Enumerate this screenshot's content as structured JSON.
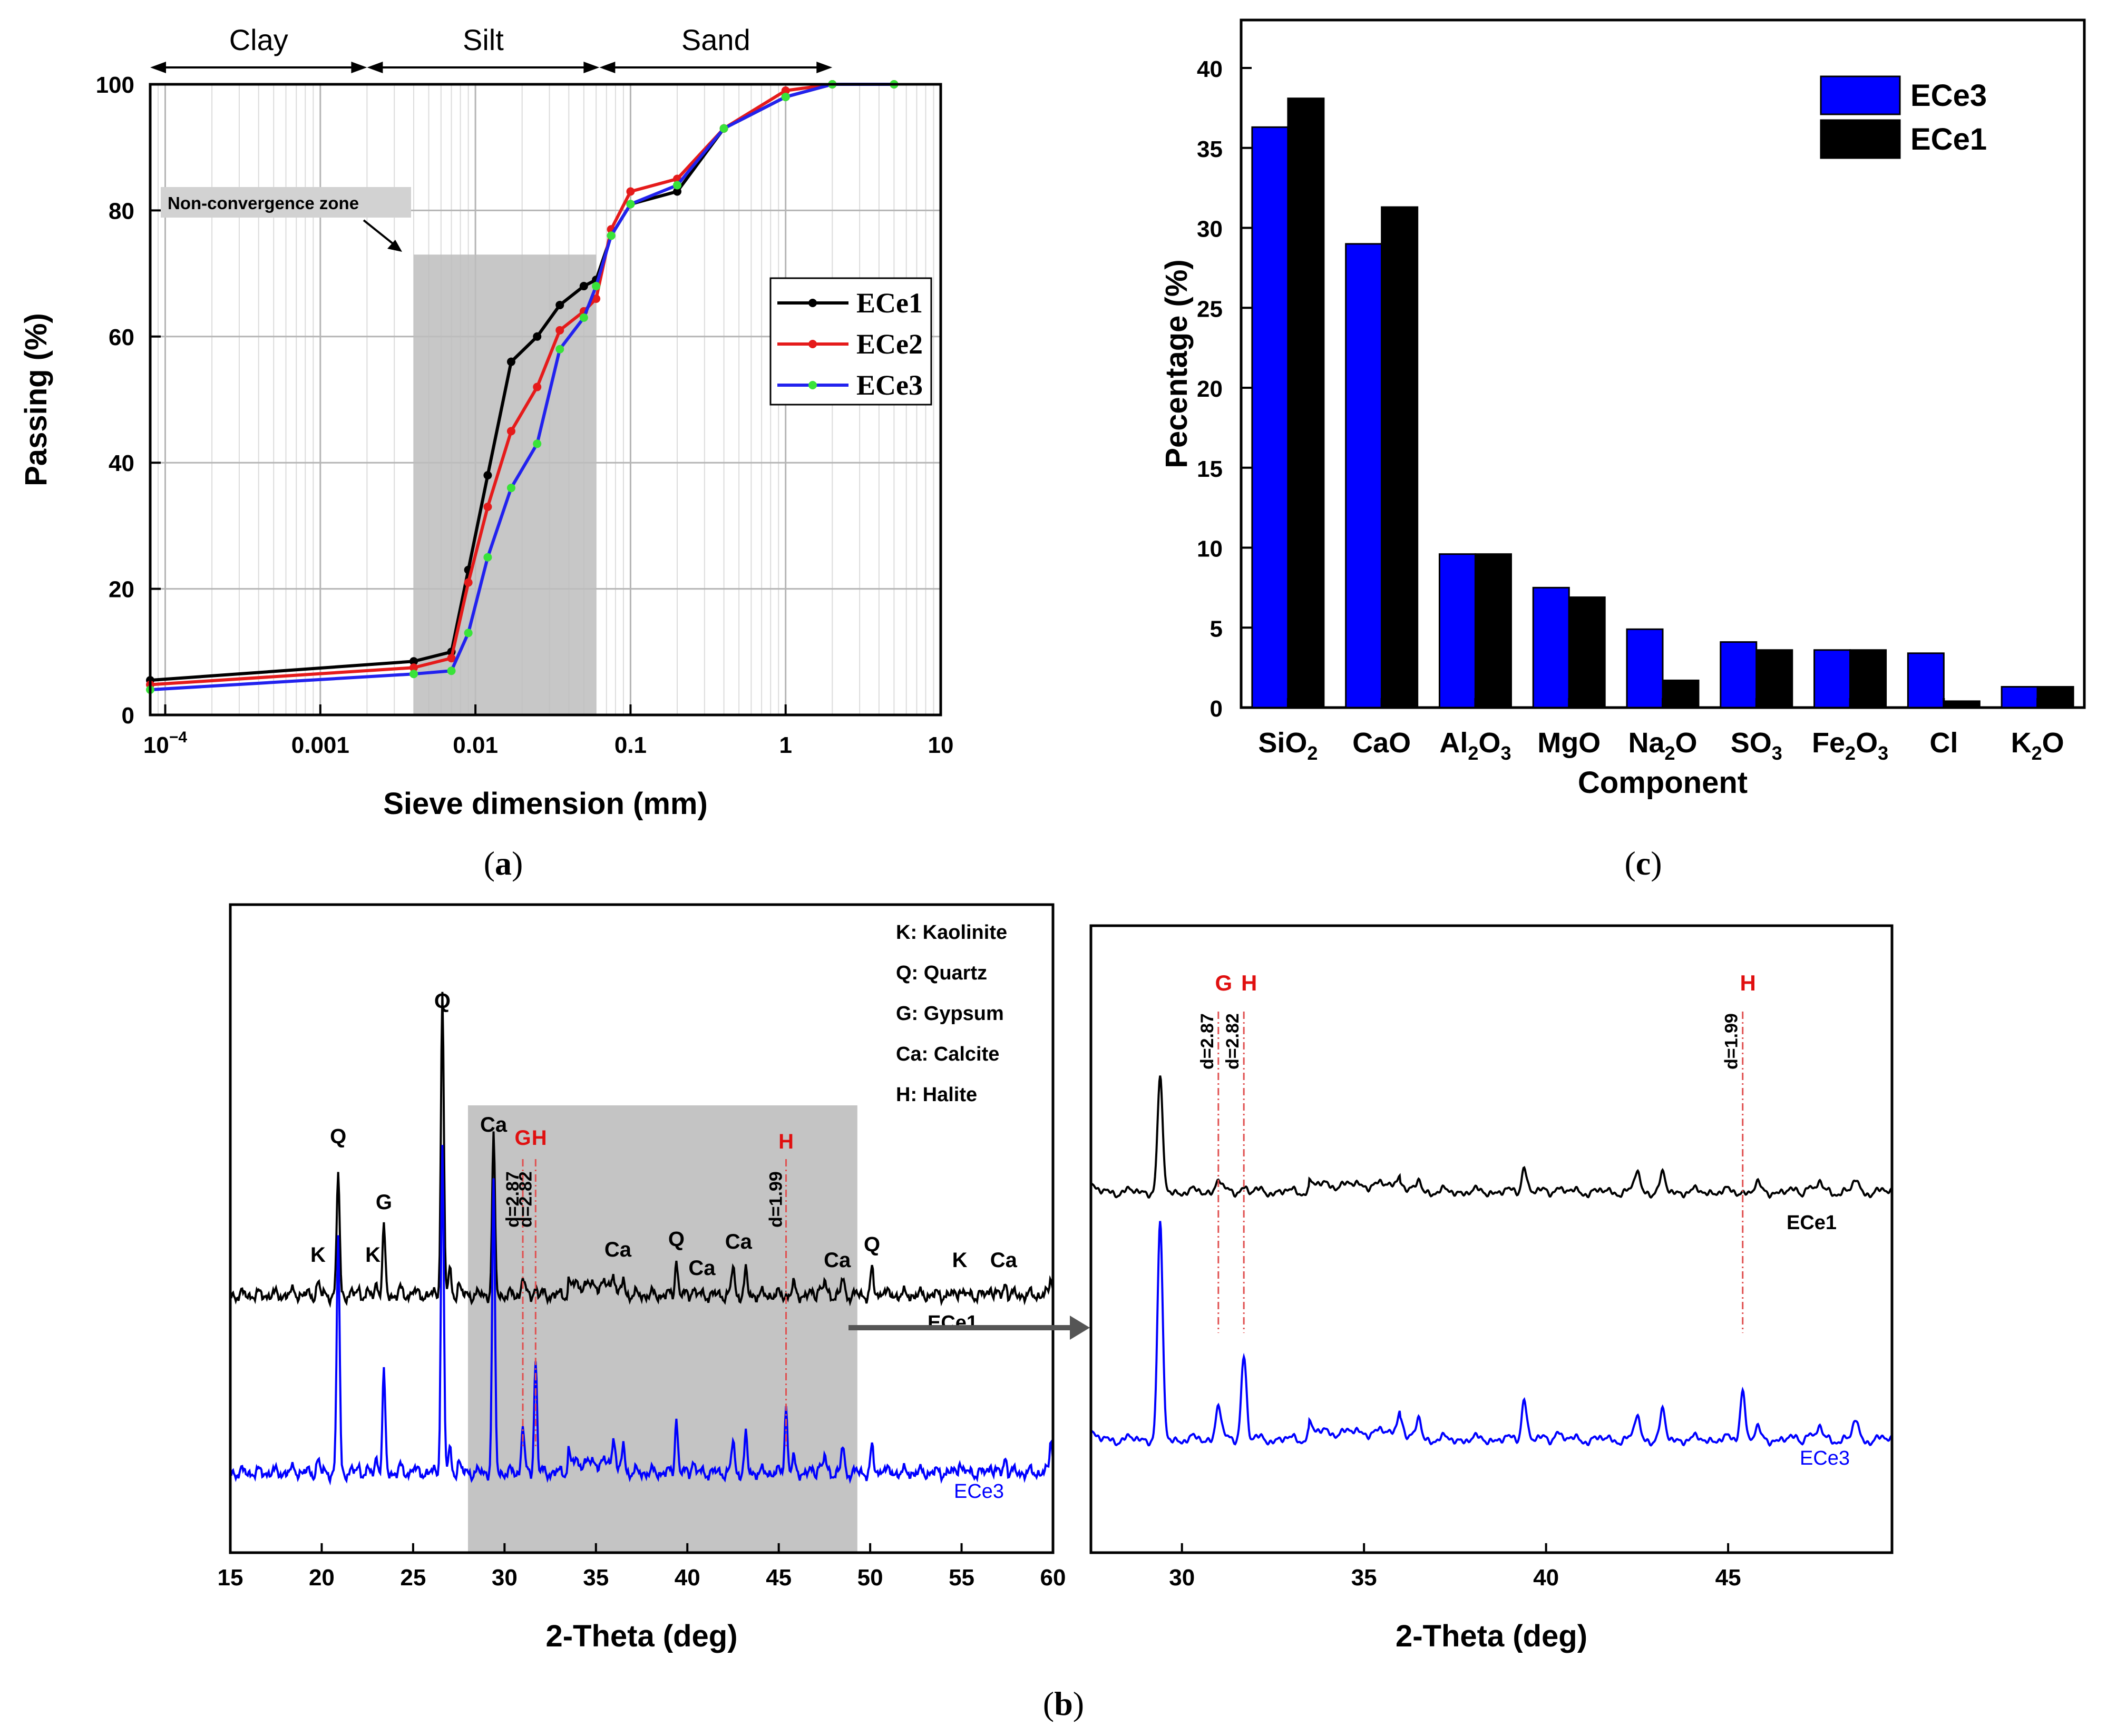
{
  "panel_labels": {
    "a": "a",
    "b": "b",
    "c": "c"
  },
  "chart_data": [
    {
      "id": "a",
      "type": "line",
      "xscale": "log",
      "xlim": [
        8e-05,
        10
      ],
      "ylim": [
        0,
        100
      ],
      "xlabel": "Sieve dimension (mm)",
      "ylabel": "Passing (%)",
      "xticks": [
        {
          "value": 0.0001,
          "label": "10",
          "sup": "−4"
        },
        {
          "value": 0.001,
          "label": "0.001"
        },
        {
          "value": 0.01,
          "label": "0.01"
        },
        {
          "value": 0.1,
          "label": "0.1"
        },
        {
          "value": 1,
          "label": "1"
        },
        {
          "value": 10,
          "label": "10"
        }
      ],
      "yticks": [
        0,
        20,
        40,
        60,
        80,
        100
      ],
      "zones": [
        {
          "label": "Clay",
          "from": 8e-05,
          "to": 0.002
        },
        {
          "label": "Silt",
          "from": 0.002,
          "to": 0.063
        },
        {
          "label": "Sand",
          "from": 0.063,
          "to": 2
        }
      ],
      "shaded_region": {
        "x": [
          0.004,
          0.06
        ],
        "ymax": 73
      },
      "annotation": {
        "text": "Non-convergence zone"
      },
      "series": [
        {
          "name": "ECe1",
          "color": "#000000",
          "x": [
            8e-05,
            0.004,
            0.007,
            0.009,
            0.012,
            0.017,
            0.025,
            0.035,
            0.05,
            0.06,
            0.075,
            0.1,
            0.2,
            0.4,
            1,
            2,
            5
          ],
          "y": [
            5.5,
            8.5,
            10,
            23,
            38,
            56,
            60,
            65,
            68,
            69,
            76,
            81,
            83,
            93,
            98,
            100,
            100
          ]
        },
        {
          "name": "ECe2",
          "color": "#e51b1b",
          "x": [
            8e-05,
            0.004,
            0.007,
            0.009,
            0.012,
            0.017,
            0.025,
            0.035,
            0.05,
            0.06,
            0.075,
            0.1,
            0.2,
            0.4,
            1,
            2,
            5
          ],
          "y": [
            4.8,
            7.5,
            9,
            21,
            33,
            45,
            52,
            61,
            64,
            66,
            77,
            83,
            85,
            93,
            99,
            100,
            100
          ]
        },
        {
          "name": "ECe3",
          "color": "#2222ee",
          "x": [
            8e-05,
            0.004,
            0.007,
            0.009,
            0.012,
            0.017,
            0.025,
            0.035,
            0.05,
            0.06,
            0.075,
            0.1,
            0.2,
            0.4,
            1,
            2,
            5
          ],
          "y": [
            4,
            6.5,
            7,
            13,
            25,
            36,
            43,
            58,
            63,
            68,
            76,
            81,
            84,
            93,
            98,
            100,
            100
          ]
        }
      ],
      "legend": "right"
    },
    {
      "id": "c",
      "type": "bar",
      "categories": [
        {
          "base": "SiO",
          "sub": "2",
          "tail": ""
        },
        {
          "base": "CaO",
          "sub": "",
          "tail": ""
        },
        {
          "base": "Al",
          "sub": "2",
          "tail": "O",
          "sub2": "3"
        },
        {
          "base": "MgO",
          "sub": "",
          "tail": ""
        },
        {
          "base": "Na",
          "sub": "2",
          "tail": "O"
        },
        {
          "base": "SO",
          "sub": "3",
          "tail": ""
        },
        {
          "base": "Fe",
          "sub": "2",
          "tail": "O",
          "sub2": "3"
        },
        {
          "base": "Cl",
          "sub": "",
          "tail": ""
        },
        {
          "base": "K",
          "sub": "2",
          "tail": "O"
        }
      ],
      "series": [
        {
          "name": "ECe3",
          "color": "#0000ff",
          "values": [
            36.3,
            29.0,
            9.6,
            7.5,
            4.9,
            4.1,
            3.6,
            3.4,
            1.3
          ]
        },
        {
          "name": "ECe1",
          "color": "#000000",
          "values": [
            38.1,
            31.3,
            9.6,
            6.9,
            1.7,
            3.6,
            3.6,
            0.4,
            1.3
          ]
        }
      ],
      "ylim": [
        0,
        43
      ],
      "yticks": [
        0,
        5,
        10,
        15,
        20,
        25,
        30,
        35,
        40
      ],
      "xlabel": "Component",
      "ylabel": "Pecentage (%)",
      "legend": "top-right"
    },
    {
      "id": "b-left",
      "type": "line",
      "xlim": [
        15,
        60
      ],
      "xticks": [
        15,
        20,
        25,
        30,
        35,
        40,
        45,
        50,
        55,
        60
      ],
      "xlabel": "2-Theta (deg)",
      "shaded_region": {
        "x": [
          28,
          49.3
        ]
      },
      "legend_items": [
        "K: Kaolinite",
        "Q: Quartz",
        "G: Gypsum",
        "Ca: Calcite",
        "H: Halite"
      ],
      "series": [
        {
          "name": "ECe1",
          "color": "#000000",
          "label": "ECe1",
          "peaks": [
            [
              18.5,
              3
            ],
            [
              19.8,
              8
            ],
            [
              20.9,
              75
            ],
            [
              22.0,
              4
            ],
            [
              23.0,
              8
            ],
            [
              23.4,
              40
            ],
            [
              24.3,
              3
            ],
            [
              25.0,
              3
            ],
            [
              26.6,
              185
            ],
            [
              27.0,
              15
            ],
            [
              27.5,
              7
            ],
            [
              29.4,
              95
            ],
            [
              31.0,
              12
            ],
            [
              31.7,
              5
            ],
            [
              33.5,
              3
            ],
            [
              36.0,
              12
            ],
            [
              36.5,
              10
            ],
            [
              39.4,
              22
            ],
            [
              40.3,
              5
            ],
            [
              42.5,
              18
            ],
            [
              43.2,
              14
            ],
            [
              45.8,
              6
            ],
            [
              47.2,
              6
            ],
            [
              47.5,
              8
            ],
            [
              48.5,
              10
            ],
            [
              50.1,
              15
            ],
            [
              50.7,
              4
            ],
            [
              54.9,
              5
            ],
            [
              56.6,
              6
            ],
            [
              57.4,
              8
            ],
            [
              59.9,
              12
            ]
          ]
        },
        {
          "name": "ECe3",
          "color": "#0000ff",
          "label": "ECe3",
          "peaks": [
            [
              18.5,
              3
            ],
            [
              19.8,
              8
            ],
            [
              20.9,
              145
            ],
            [
              22.0,
              4
            ],
            [
              23.0,
              10
            ],
            [
              23.4,
              60
            ],
            [
              24.3,
              3
            ],
            [
              25.0,
              3
            ],
            [
              26.6,
              200
            ],
            [
              27.0,
              14
            ],
            [
              27.5,
              7
            ],
            [
              29.4,
              175
            ],
            [
              31.0,
              30
            ],
            [
              31.7,
              70
            ],
            [
              33.5,
              8
            ],
            [
              36.0,
              22
            ],
            [
              36.5,
              18
            ],
            [
              39.4,
              34
            ],
            [
              40.3,
              8
            ],
            [
              42.5,
              20
            ],
            [
              43.2,
              22
            ],
            [
              45.4,
              40
            ],
            [
              45.8,
              8
            ],
            [
              47.2,
              6
            ],
            [
              47.5,
              10
            ],
            [
              48.5,
              16
            ],
            [
              50.1,
              15
            ],
            [
              50.7,
              4
            ],
            [
              54.9,
              8
            ],
            [
              56.6,
              6
            ],
            [
              57.4,
              10
            ],
            [
              59.9,
              22
            ]
          ]
        }
      ],
      "peak_labels": [
        {
          "text": "K",
          "x": 19.8,
          "series": "ECe1",
          "color": "#000000"
        },
        {
          "text": "Q",
          "x": 20.9,
          "series": "ECe1",
          "color": "#000000"
        },
        {
          "text": "K",
          "x": 22.8,
          "series": "ECe1",
          "color": "#000000"
        },
        {
          "text": "G",
          "x": 23.4,
          "series": "ECe1",
          "color": "#000000"
        },
        {
          "text": "Q",
          "x": 26.6,
          "series": "ECe1",
          "color": "#000000"
        },
        {
          "text": "Ca",
          "x": 29.4,
          "series": "ECe1",
          "color": "#000000"
        },
        {
          "text": "G",
          "x": 31.0,
          "series": "ECe1",
          "color": "#e01010"
        },
        {
          "text": "H",
          "x": 31.9,
          "series": "ECe1",
          "color": "#e01010"
        },
        {
          "text": "Ca",
          "x": 36.2,
          "series": "ECe1",
          "color": "#000000"
        },
        {
          "text": "Q",
          "x": 39.4,
          "series": "ECe1",
          "color": "#000000"
        },
        {
          "text": "Ca",
          "x": 40.8,
          "series": "ECe1",
          "color": "#000000"
        },
        {
          "text": "Ca",
          "x": 42.8,
          "series": "ECe1",
          "color": "#000000"
        },
        {
          "text": "H",
          "x": 45.4,
          "series": "ECe1",
          "color": "#e01010"
        },
        {
          "text": "Ca",
          "x": 48.2,
          "series": "ECe1",
          "color": "#000000"
        },
        {
          "text": "Q",
          "x": 50.1,
          "series": "ECe1",
          "color": "#000000"
        },
        {
          "text": "K",
          "x": 54.9,
          "series": "ECe1",
          "color": "#000000"
        },
        {
          "text": "Ca",
          "x": 57.3,
          "series": "ECe1",
          "color": "#000000"
        }
      ],
      "d_spacings": [
        {
          "text": "d=2.87",
          "x": 31.0
        },
        {
          "text": "d=2.82",
          "x": 31.7
        },
        {
          "text": "d=1.99",
          "x": 45.4
        }
      ]
    },
    {
      "id": "b-right",
      "type": "line",
      "xlim": [
        27.5,
        49.5
      ],
      "xticks": [
        30,
        35,
        40,
        45
      ],
      "xlabel": "2-Theta (deg)",
      "series_labels": [
        "ECe1",
        "ECe3"
      ],
      "peak_labels": [
        {
          "text": "G",
          "x": 31.0,
          "color": "#e01010"
        },
        {
          "text": "H",
          "x": 31.7,
          "color": "#e01010"
        },
        {
          "text": "H",
          "x": 45.4,
          "color": "#e01010"
        }
      ],
      "d_spacings": [
        {
          "text": "d=2.87",
          "x": 31.0
        },
        {
          "text": "d=2.82",
          "x": 31.7
        },
        {
          "text": "d=1.99",
          "x": 45.4
        }
      ]
    }
  ]
}
